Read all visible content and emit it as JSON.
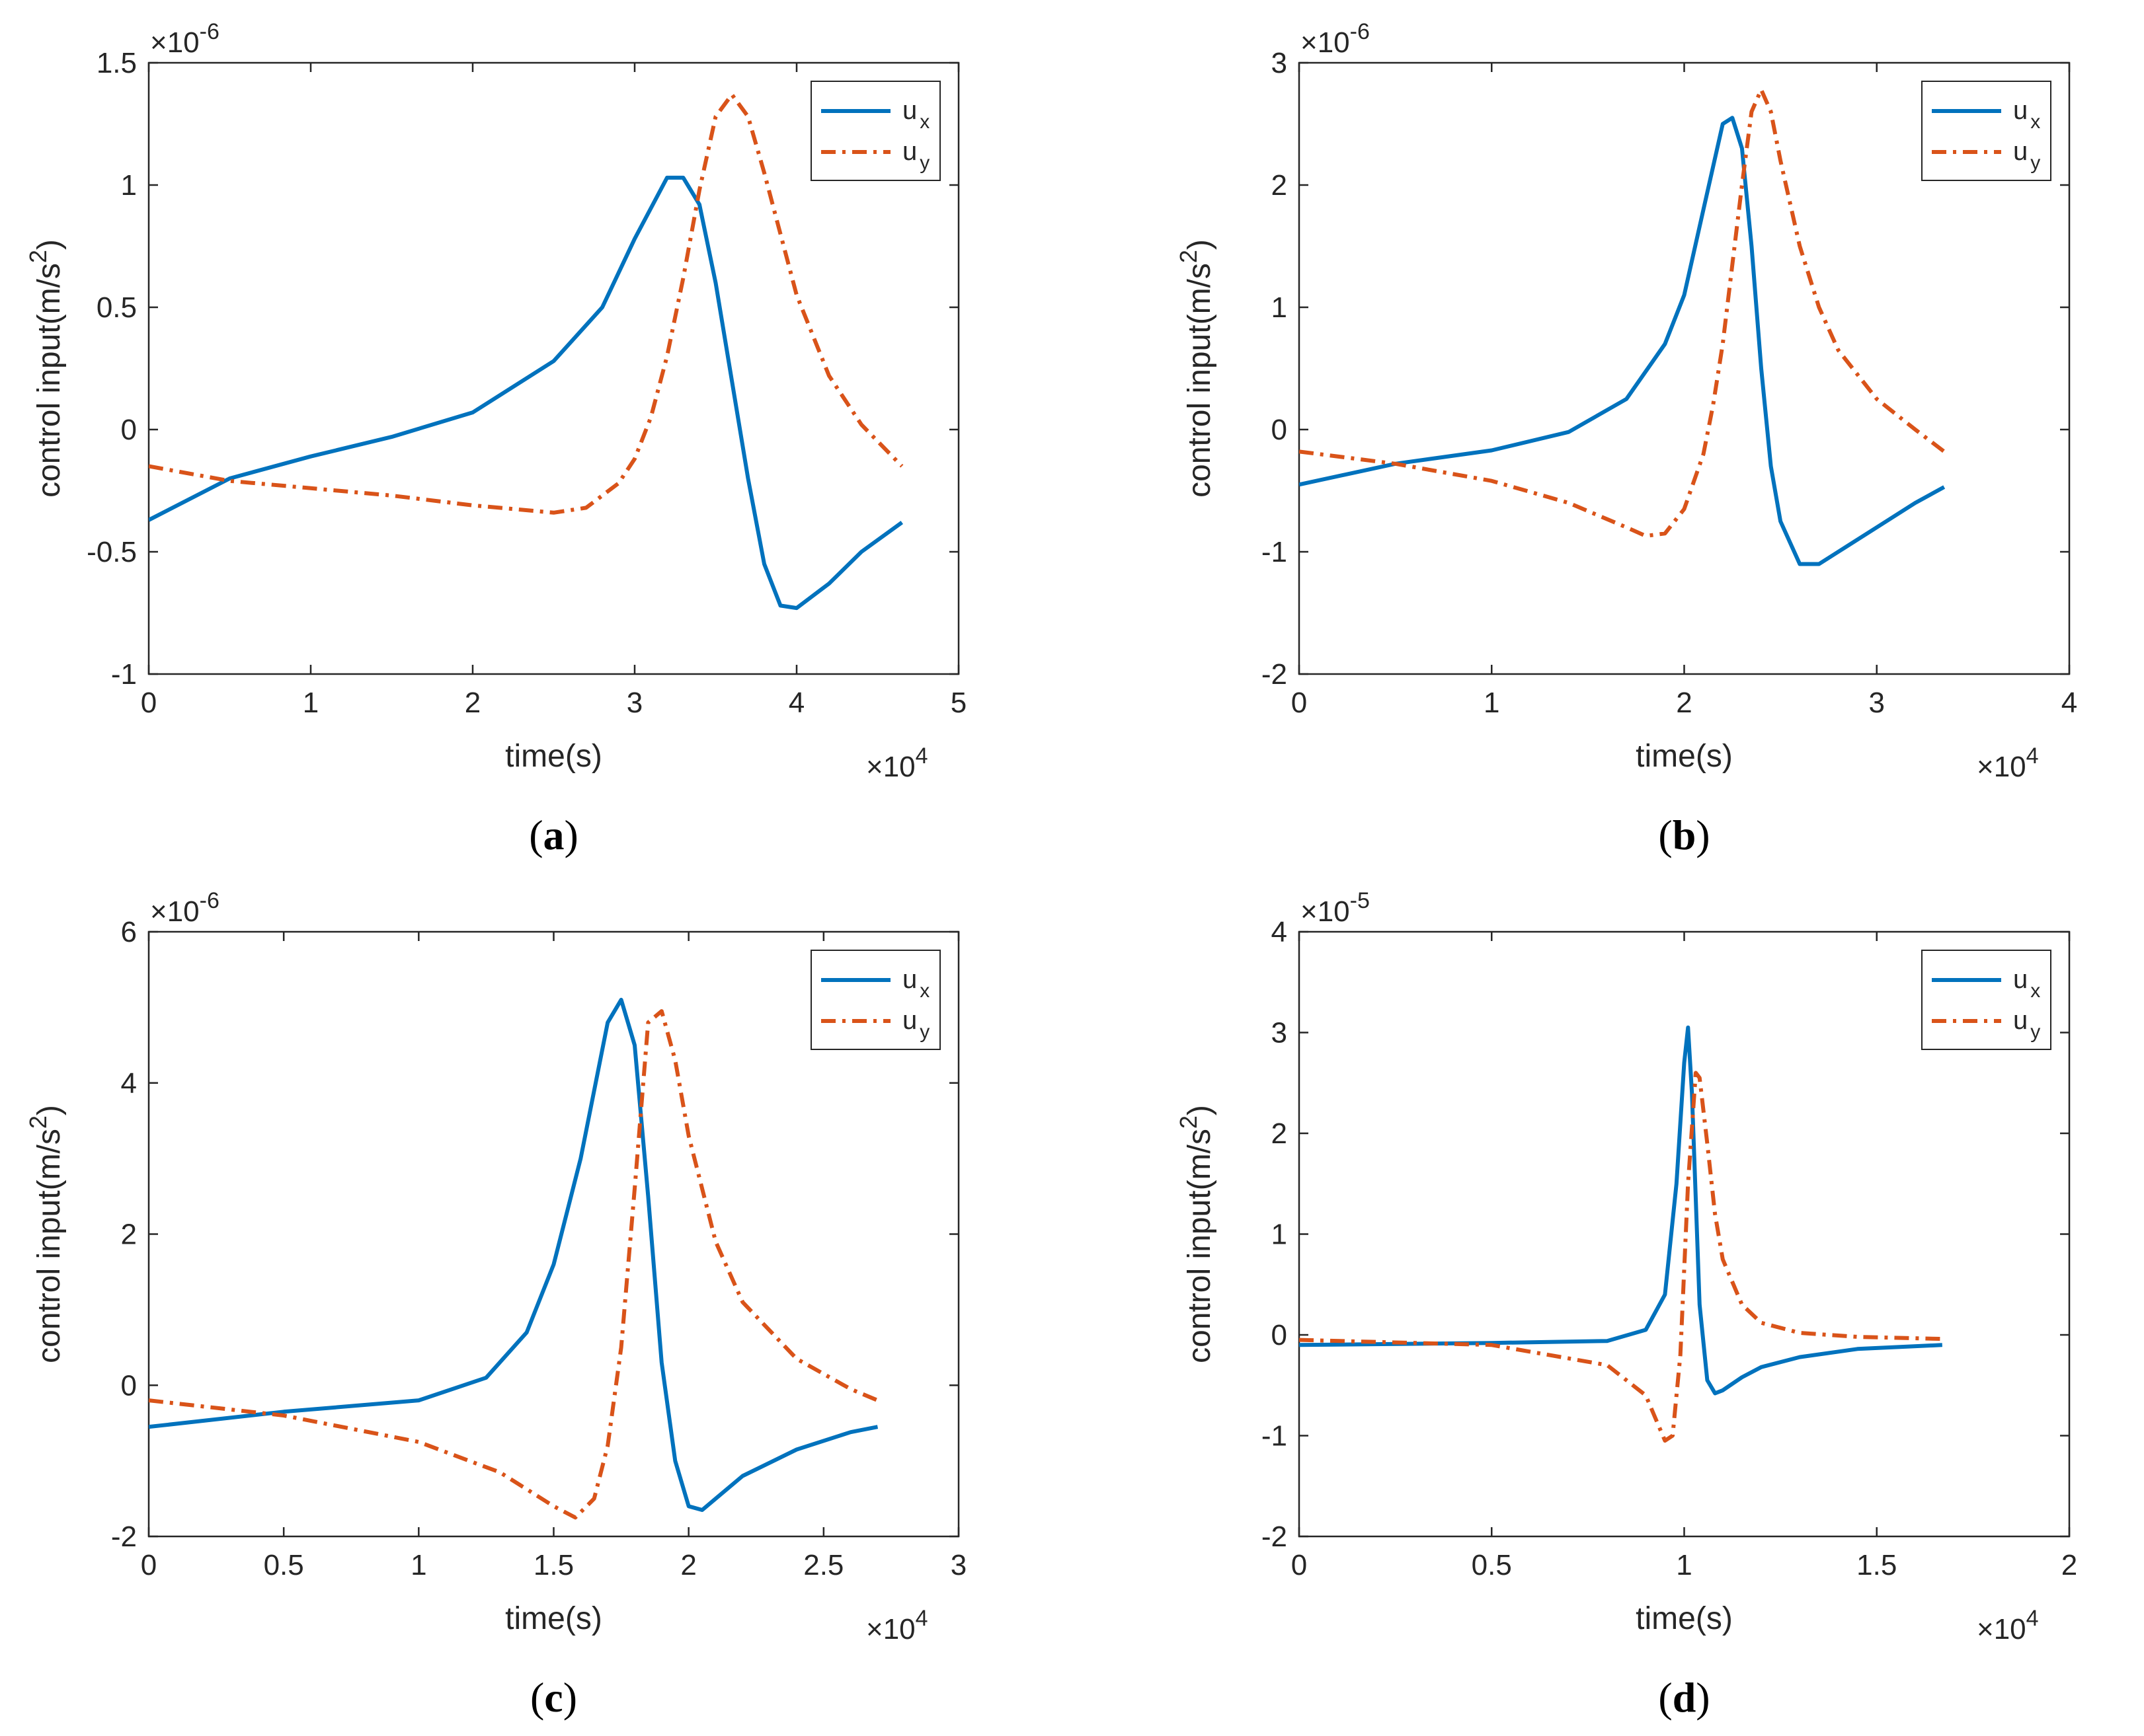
{
  "figure": {
    "panels_count": 4
  },
  "chart_data": [
    {
      "id": "a",
      "type": "line",
      "caption": {
        "open": "(",
        "letter": "a",
        "close": ")"
      },
      "xlabel": "time(s)",
      "ylabel": "control input(m/s",
      "ylabel_sup": "2",
      "ylabel_close": ")",
      "x_exponent": {
        "prefix": "×10",
        "power": "4"
      },
      "y_exponent": {
        "prefix": "×10",
        "power": "-6"
      },
      "xlim": [
        0,
        5
      ],
      "ylim": [
        -1,
        1.5
      ],
      "xticks": [
        0,
        1,
        2,
        3,
        4,
        5
      ],
      "xtick_labels": [
        "0",
        "1",
        "2",
        "3",
        "4",
        "5"
      ],
      "yticks": [
        -1,
        -0.5,
        0,
        0.5,
        1,
        1.5
      ],
      "ytick_labels": [
        "-1",
        "-0.5",
        "0",
        "0.5",
        "1",
        "1.5"
      ],
      "legend": {
        "position": "top-right"
      },
      "series": [
        {
          "name": "u",
          "sub": "x",
          "color": "#0072BD",
          "style": "solid",
          "x": [
            0,
            0.5,
            1,
            1.5,
            2,
            2.5,
            2.8,
            3.0,
            3.2,
            3.3,
            3.4,
            3.5,
            3.6,
            3.7,
            3.8,
            3.9,
            4.0,
            4.2,
            4.4,
            4.65
          ],
          "y": [
            -0.37,
            -0.2,
            -0.11,
            -0.03,
            0.07,
            0.28,
            0.5,
            0.78,
            1.03,
            1.03,
            0.92,
            0.6,
            0.2,
            -0.2,
            -0.55,
            -0.72,
            -0.73,
            -0.63,
            -0.5,
            -0.38
          ]
        },
        {
          "name": "u",
          "sub": "y",
          "color": "#D95319",
          "style": "dashdot",
          "x": [
            0,
            0.5,
            1,
            1.5,
            2,
            2.5,
            2.7,
            2.9,
            3.0,
            3.1,
            3.2,
            3.3,
            3.4,
            3.5,
            3.6,
            3.7,
            3.8,
            3.9,
            4.0,
            4.2,
            4.4,
            4.65
          ],
          "y": [
            -0.15,
            -0.21,
            -0.24,
            -0.27,
            -0.31,
            -0.34,
            -0.32,
            -0.22,
            -0.12,
            0.05,
            0.3,
            0.62,
            0.98,
            1.28,
            1.37,
            1.28,
            1.05,
            0.8,
            0.55,
            0.22,
            0.02,
            -0.15
          ]
        }
      ]
    },
    {
      "id": "b",
      "type": "line",
      "caption": {
        "open": "(",
        "letter": "b",
        "close": ")"
      },
      "xlabel": "time(s)",
      "ylabel": "control input(m/s",
      "ylabel_sup": "2",
      "ylabel_close": ")",
      "x_exponent": {
        "prefix": "×10",
        "power": "4"
      },
      "y_exponent": {
        "prefix": "×10",
        "power": "-6"
      },
      "xlim": [
        0,
        4
      ],
      "ylim": [
        -2,
        3
      ],
      "xticks": [
        0,
        1,
        2,
        3,
        4
      ],
      "xtick_labels": [
        "0",
        "1",
        "2",
        "3",
        "4"
      ],
      "yticks": [
        -2,
        -1,
        0,
        1,
        2,
        3
      ],
      "ytick_labels": [
        "-2",
        "-1",
        "0",
        "1",
        "2",
        "3"
      ],
      "legend": {
        "position": "top-right"
      },
      "series": [
        {
          "name": "u",
          "sub": "x",
          "color": "#0072BD",
          "style": "solid",
          "x": [
            0,
            0.5,
            1.0,
            1.4,
            1.7,
            1.9,
            2.0,
            2.1,
            2.2,
            2.25,
            2.3,
            2.35,
            2.4,
            2.45,
            2.5,
            2.6,
            2.7,
            2.8,
            3.0,
            3.2,
            3.35
          ],
          "y": [
            -0.45,
            -0.28,
            -0.17,
            -0.02,
            0.25,
            0.7,
            1.1,
            1.8,
            2.5,
            2.55,
            2.3,
            1.5,
            0.5,
            -0.3,
            -0.75,
            -1.1,
            -1.1,
            -1.0,
            -0.8,
            -0.6,
            -0.47
          ]
        },
        {
          "name": "u",
          "sub": "y",
          "color": "#D95319",
          "style": "dashdot",
          "x": [
            0,
            0.5,
            1.0,
            1.4,
            1.7,
            1.8,
            1.9,
            2.0,
            2.1,
            2.15,
            2.2,
            2.3,
            2.35,
            2.4,
            2.45,
            2.5,
            2.6,
            2.7,
            2.8,
            3.0,
            3.2,
            3.35
          ],
          "y": [
            -0.18,
            -0.28,
            -0.42,
            -0.6,
            -0.8,
            -0.87,
            -0.85,
            -0.65,
            -0.2,
            0.2,
            0.7,
            2.0,
            2.6,
            2.78,
            2.6,
            2.2,
            1.5,
            1.0,
            0.65,
            0.25,
            0.0,
            -0.18
          ]
        }
      ]
    },
    {
      "id": "c",
      "type": "line",
      "caption": {
        "open": "(",
        "letter": "c",
        "close": ")"
      },
      "xlabel": "time(s)",
      "ylabel": "control input(m/s",
      "ylabel_sup": "2",
      "ylabel_close": ")",
      "x_exponent": {
        "prefix": "×10",
        "power": "4"
      },
      "y_exponent": {
        "prefix": "×10",
        "power": "-6"
      },
      "xlim": [
        0,
        3
      ],
      "ylim": [
        -2,
        6
      ],
      "xticks": [
        0,
        0.5,
        1,
        1.5,
        2,
        2.5,
        3
      ],
      "xtick_labels": [
        "0",
        "0.5",
        "1",
        "1.5",
        "2",
        "2.5",
        "3"
      ],
      "yticks": [
        -2,
        0,
        2,
        4,
        6
      ],
      "ytick_labels": [
        "-2",
        "0",
        "2",
        "4",
        "6"
      ],
      "legend": {
        "position": "top-right"
      },
      "series": [
        {
          "name": "u",
          "sub": "x",
          "color": "#0072BD",
          "style": "solid",
          "x": [
            0,
            0.5,
            1.0,
            1.25,
            1.4,
            1.5,
            1.6,
            1.7,
            1.75,
            1.8,
            1.85,
            1.9,
            1.95,
            2.0,
            2.05,
            2.1,
            2.2,
            2.4,
            2.6,
            2.7
          ],
          "y": [
            -0.55,
            -0.35,
            -0.2,
            0.1,
            0.7,
            1.6,
            3.0,
            4.8,
            5.1,
            4.5,
            2.5,
            0.3,
            -1.0,
            -1.6,
            -1.65,
            -1.5,
            -1.2,
            -0.85,
            -0.62,
            -0.55
          ]
        },
        {
          "name": "u",
          "sub": "y",
          "color": "#D95319",
          "style": "dashdot",
          "x": [
            0,
            0.5,
            1.0,
            1.3,
            1.5,
            1.58,
            1.65,
            1.7,
            1.75,
            1.8,
            1.85,
            1.9,
            1.95,
            2.0,
            2.1,
            2.2,
            2.4,
            2.6,
            2.7
          ],
          "y": [
            -0.2,
            -0.4,
            -0.75,
            -1.15,
            -1.6,
            -1.75,
            -1.5,
            -0.8,
            0.5,
            2.6,
            4.8,
            4.95,
            4.3,
            3.3,
            1.9,
            1.1,
            0.35,
            -0.05,
            -0.2
          ]
        }
      ]
    },
    {
      "id": "d",
      "type": "line",
      "caption": {
        "open": "(",
        "letter": "d",
        "close": ")"
      },
      "xlabel": "time(s)",
      "ylabel": "control input(m/s",
      "ylabel_sup": "2",
      "ylabel_close": ")",
      "x_exponent": {
        "prefix": "×10",
        "power": "4"
      },
      "y_exponent": {
        "prefix": "×10",
        "power": "-5"
      },
      "xlim": [
        0,
        2
      ],
      "ylim": [
        -2,
        4
      ],
      "xticks": [
        0,
        0.5,
        1,
        1.5,
        2
      ],
      "xtick_labels": [
        "0",
        "0.5",
        "1",
        "1.5",
        "2"
      ],
      "yticks": [
        -2,
        -1,
        0,
        1,
        2,
        3,
        4
      ],
      "ytick_labels": [
        "-2",
        "-1",
        "0",
        "1",
        "2",
        "3",
        "4"
      ],
      "legend": {
        "position": "top-right"
      },
      "series": [
        {
          "name": "u",
          "sub": "x",
          "color": "#0072BD",
          "style": "solid",
          "x": [
            0,
            0.5,
            0.8,
            0.9,
            0.95,
            0.98,
            1.0,
            1.01,
            1.02,
            1.04,
            1.06,
            1.08,
            1.1,
            1.15,
            1.2,
            1.3,
            1.45,
            1.67
          ],
          "y": [
            -0.1,
            -0.08,
            -0.06,
            0.05,
            0.4,
            1.5,
            2.7,
            3.05,
            2.4,
            0.3,
            -0.45,
            -0.58,
            -0.55,
            -0.42,
            -0.32,
            -0.22,
            -0.14,
            -0.1
          ]
        },
        {
          "name": "u",
          "sub": "y",
          "color": "#D95319",
          "style": "dashdot",
          "x": [
            0,
            0.5,
            0.8,
            0.9,
            0.95,
            0.97,
            0.99,
            1.01,
            1.03,
            1.04,
            1.06,
            1.08,
            1.1,
            1.15,
            1.2,
            1.3,
            1.45,
            1.67
          ],
          "y": [
            -0.05,
            -0.1,
            -0.3,
            -0.6,
            -1.05,
            -1.0,
            -0.2,
            1.5,
            2.6,
            2.55,
            1.9,
            1.2,
            0.75,
            0.3,
            0.12,
            0.02,
            -0.02,
            -0.04
          ]
        }
      ]
    }
  ]
}
